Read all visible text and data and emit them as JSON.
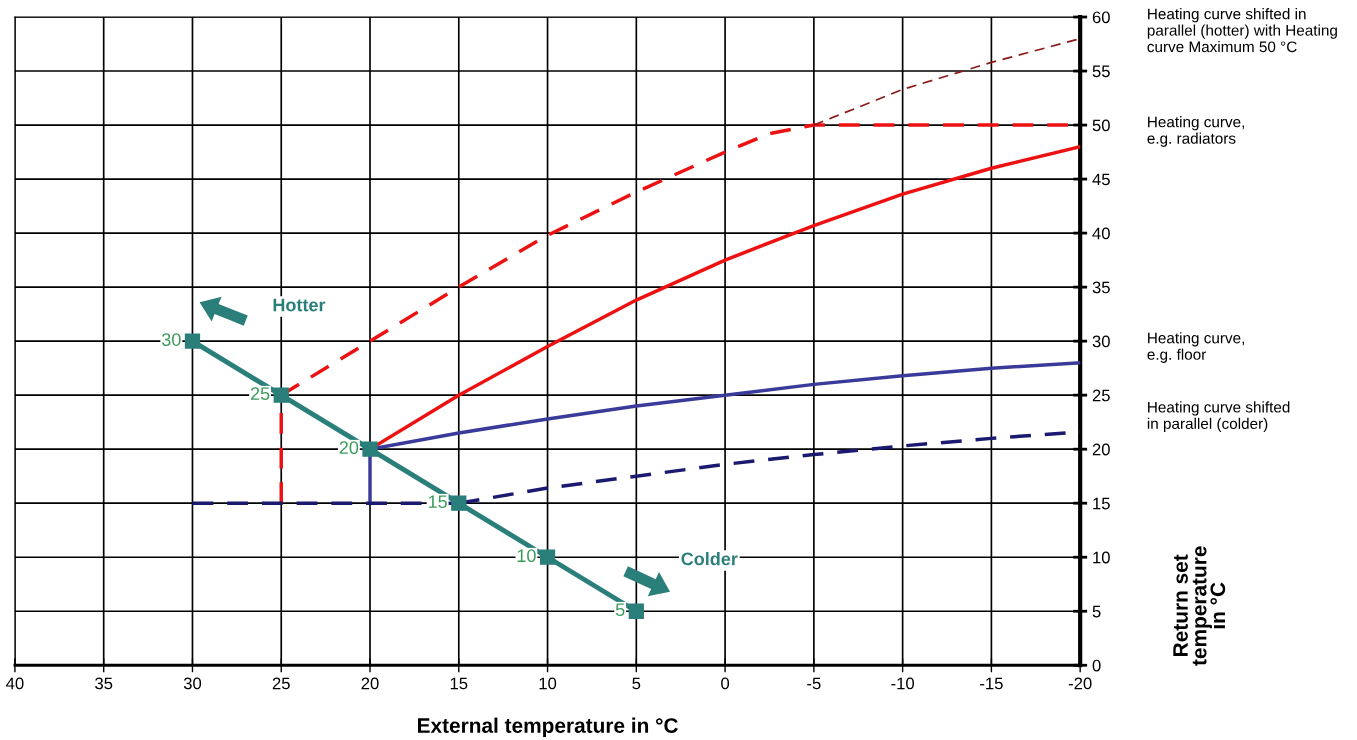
{
  "chart_data": {
    "type": "line",
    "xlabel": "External temperature in °C",
    "ylabel": "Return set\ntemperature\nin °C",
    "xlim": [
      40,
      -20
    ],
    "xticks": [
      40,
      35,
      30,
      25,
      20,
      15,
      10,
      5,
      0,
      -5,
      -10,
      -15,
      -20
    ],
    "ylim": [
      0,
      60
    ],
    "yticks": [
      0,
      5,
      10,
      15,
      20,
      25,
      30,
      35,
      40,
      45,
      50,
      55,
      60
    ],
    "grid": true,
    "legend": false,
    "series": [
      {
        "color": "#ee1111",
        "line_style": "dashed",
        "x": [
          25,
          20,
          15,
          10,
          5,
          0,
          -2.5,
          -5,
          -20
        ],
        "values": [
          25,
          30,
          35,
          39.8,
          43.8,
          47.5,
          49.2,
          50,
          50
        ]
      },
      {
        "name": "Heating curve shifted in\nparallel (hotter) with Heating\ncurve Maximum 50 °C",
        "color": "#8b1a1a",
        "line_style": "dashed",
        "x": [
          -5,
          -10,
          -15,
          -20
        ],
        "values": [
          50,
          53.3,
          55.8,
          58
        ]
      },
      {
        "name": "Heating curve,\ne.g. radiators",
        "color": "#ee1111",
        "line_style": "solid",
        "x": [
          20,
          15,
          10,
          5,
          0,
          -5,
          -10,
          -15,
          -20
        ],
        "values": [
          20,
          25,
          29.5,
          33.8,
          37.5,
          40.7,
          43.6,
          46,
          48
        ]
      },
      {
        "name": "Heating curve,\ne.g. floor",
        "color": "#3a3a9a",
        "line_style": "solid",
        "x": [
          20,
          15,
          10,
          5,
          0,
          -5,
          -10,
          -15,
          -20
        ],
        "values": [
          20,
          21.5,
          22.8,
          24,
          25,
          26,
          26.8,
          27.5,
          28
        ]
      },
      {
        "name": "Heating curve shifted\nin parallel (colder)",
        "color": "#1a1a70",
        "line_style": "dashed",
        "x": [
          15,
          10,
          5,
          0,
          -5,
          -10,
          -15,
          -20
        ],
        "values": [
          15,
          16.4,
          17.5,
          18.6,
          19.5,
          20.3,
          21,
          21.6
        ]
      },
      {
        "color": "#ee1111",
        "line_style": "dashed",
        "x": [
          25,
          25
        ],
        "values": [
          15,
          25
        ]
      },
      {
        "color": "#3a3a9a",
        "line_style": "solid",
        "x": [
          20,
          20
        ],
        "values": [
          15,
          20
        ]
      },
      {
        "color": "#1a1a70",
        "line_style": "dashed",
        "x": [
          30,
          15
        ],
        "values": [
          15,
          15
        ]
      },
      {
        "color": "#2a7f7a",
        "line_style": "solid",
        "marker": "square",
        "data_labels": true,
        "x": [
          30,
          25,
          20,
          15,
          10,
          5
        ],
        "values": [
          30,
          25,
          20,
          15,
          10,
          5
        ]
      }
    ],
    "annotations": [
      "Hotter",
      "Colder"
    ]
  }
}
